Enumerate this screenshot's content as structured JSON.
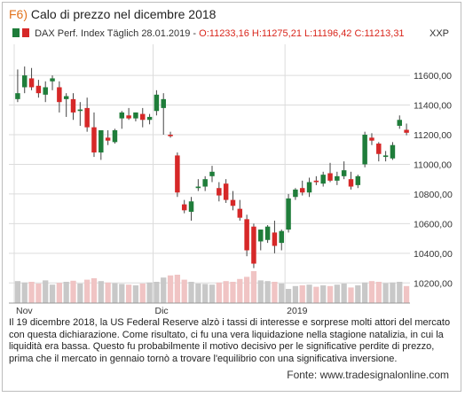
{
  "figure": {
    "number": "F6)",
    "title": "Calo di prezzo nel dicembre 2018"
  },
  "legend": {
    "instrument": "DAX Perf. Index Täglich",
    "date": "28.01.2019",
    "ohlc": "O:11233,16 H:11275,21 L:11196,42 C:11213,31",
    "currency": "XXP"
  },
  "caption": "Il 19 dicembre 2018, la US Federal Reserve alzò i tassi di interesse e sorprese molti attori del mercato con questa dichiarazione. Come risultato, ci fu una vera liquidazione nella stagione natalizia, in cui la liquidità era bassa. Questo fu probabilmente il motivo decisivo per le significative perdite di prezzo, prima che il mercato in gennaio tornò a trovare l'equilibrio con una significativa inversione.",
  "source": "Fonte: www.tradesignalonline.com",
  "colors": {
    "up": "#1f7d3a",
    "down": "#d62828",
    "volume": "#c8c8c8",
    "volume_down": "#f0c4c4",
    "grid": "#dcdcdc",
    "accent": "#e2731d"
  },
  "chart_data": {
    "type": "candlestick",
    "ylim": [
      10100,
      11750
    ],
    "y_ticks": [
      10200,
      10400,
      10600,
      10800,
      11000,
      11200,
      11400,
      11600
    ],
    "y_tick_labels": [
      "10200,00",
      "10400,00",
      "10600,00",
      "10800,00",
      "11000,00",
      "11200,00",
      "11400,00",
      "11600,00"
    ],
    "x_labels": [
      {
        "label": "Nov",
        "index": 0
      },
      {
        "label": "Dic",
        "index": 20
      },
      {
        "label": "2019",
        "index": 39
      }
    ],
    "grid": true,
    "candles": [
      {
        "o": 11440,
        "h": 11640,
        "l": 11420,
        "c": 11480
      },
      {
        "o": 11520,
        "h": 11660,
        "l": 11480,
        "c": 11600
      },
      {
        "o": 11580,
        "h": 11650,
        "l": 11500,
        "c": 11520
      },
      {
        "o": 11530,
        "h": 11570,
        "l": 11450,
        "c": 11480
      },
      {
        "o": 11470,
        "h": 11560,
        "l": 11420,
        "c": 11520
      },
      {
        "o": 11560,
        "h": 11600,
        "l": 11500,
        "c": 11580
      },
      {
        "o": 11520,
        "h": 11560,
        "l": 11350,
        "c": 11420
      },
      {
        "o": 11440,
        "h": 11480,
        "l": 11320,
        "c": 11460
      },
      {
        "o": 11440,
        "h": 11480,
        "l": 11300,
        "c": 11350
      },
      {
        "o": 11360,
        "h": 11420,
        "l": 11260,
        "c": 11370
      },
      {
        "o": 11380,
        "h": 11450,
        "l": 11220,
        "c": 11250
      },
      {
        "o": 11250,
        "h": 11350,
        "l": 11050,
        "c": 11080
      },
      {
        "o": 11080,
        "h": 11220,
        "l": 11030,
        "c": 11230
      },
      {
        "o": 11180,
        "h": 11230,
        "l": 11130,
        "c": 11160
      },
      {
        "o": 11150,
        "h": 11240,
        "l": 11140,
        "c": 11230
      },
      {
        "o": 11310,
        "h": 11360,
        "l": 11240,
        "c": 11350
      },
      {
        "o": 11330,
        "h": 11380,
        "l": 11300,
        "c": 11310
      },
      {
        "o": 11310,
        "h": 11350,
        "l": 11290,
        "c": 11350
      },
      {
        "o": 11340,
        "h": 11380,
        "l": 11250,
        "c": 11300
      },
      {
        "o": 11300,
        "h": 11340,
        "l": 11270,
        "c": 11320
      },
      {
        "o": 11360,
        "h": 11500,
        "l": 11330,
        "c": 11470
      },
      {
        "o": 11380,
        "h": 11480,
        "l": 11200,
        "c": 11440
      },
      {
        "o": 11200,
        "h": 11220,
        "l": 11180,
        "c": 11190
      },
      {
        "o": 11060,
        "h": 11080,
        "l": 10780,
        "c": 10810
      },
      {
        "o": 10730,
        "h": 10760,
        "l": 10670,
        "c": 10690
      },
      {
        "o": 10680,
        "h": 10780,
        "l": 10620,
        "c": 10750
      },
      {
        "o": 10840,
        "h": 10900,
        "l": 10820,
        "c": 10850
      },
      {
        "o": 10850,
        "h": 10920,
        "l": 10820,
        "c": 10900
      },
      {
        "o": 10920,
        "h": 10990,
        "l": 10880,
        "c": 10950
      },
      {
        "o": 10840,
        "h": 10880,
        "l": 10750,
        "c": 10790
      },
      {
        "o": 10870,
        "h": 10900,
        "l": 10740,
        "c": 10760
      },
      {
        "o": 10760,
        "h": 10820,
        "l": 10690,
        "c": 10720
      },
      {
        "o": 10700,
        "h": 10760,
        "l": 10620,
        "c": 10640
      },
      {
        "o": 10630,
        "h": 10660,
        "l": 10380,
        "c": 10420
      },
      {
        "o": 10580,
        "h": 10600,
        "l": 10300,
        "c": 10330
      },
      {
        "o": 10480,
        "h": 10560,
        "l": 10420,
        "c": 10560
      },
      {
        "o": 10490,
        "h": 10590,
        "l": 10470,
        "c": 10580
      },
      {
        "o": 10540,
        "h": 10620,
        "l": 10400,
        "c": 10450
      },
      {
        "o": 10470,
        "h": 10560,
        "l": 10420,
        "c": 10550
      },
      {
        "o": 10560,
        "h": 10800,
        "l": 10540,
        "c": 10770
      },
      {
        "o": 10780,
        "h": 10840,
        "l": 10760,
        "c": 10830
      },
      {
        "o": 10840,
        "h": 10890,
        "l": 10790,
        "c": 10810
      },
      {
        "o": 10810,
        "h": 10910,
        "l": 10780,
        "c": 10880
      },
      {
        "o": 10890,
        "h": 10920,
        "l": 10860,
        "c": 10880
      },
      {
        "o": 10870,
        "h": 10950,
        "l": 10850,
        "c": 10930
      },
      {
        "o": 10940,
        "h": 11010,
        "l": 10880,
        "c": 10890
      },
      {
        "o": 10890,
        "h": 10950,
        "l": 10860,
        "c": 10920
      },
      {
        "o": 10920,
        "h": 11020,
        "l": 10900,
        "c": 10960
      },
      {
        "o": 10900,
        "h": 10950,
        "l": 10830,
        "c": 10850
      },
      {
        "o": 10860,
        "h": 10930,
        "l": 10840,
        "c": 10920
      },
      {
        "o": 11000,
        "h": 11220,
        "l": 10980,
        "c": 11200
      },
      {
        "o": 11180,
        "h": 11210,
        "l": 11130,
        "c": 11160
      },
      {
        "o": 11140,
        "h": 11150,
        "l": 11020,
        "c": 11070
      },
      {
        "o": 11050,
        "h": 11090,
        "l": 11020,
        "c": 11060
      },
      {
        "o": 11040,
        "h": 11150,
        "l": 11030,
        "c": 11130
      },
      {
        "o": 11260,
        "h": 11330,
        "l": 11240,
        "c": 11300
      },
      {
        "o": 11233,
        "h": 11275,
        "l": 11196,
        "c": 11213
      }
    ],
    "volume": [
      62,
      58,
      60,
      55,
      64,
      52,
      57,
      60,
      63,
      55,
      66,
      70,
      62,
      58,
      56,
      54,
      52,
      50,
      55,
      58,
      60,
      72,
      78,
      80,
      66,
      60,
      55,
      54,
      52,
      58,
      62,
      60,
      68,
      74,
      90,
      64,
      62,
      60,
      55,
      40,
      48,
      50,
      52,
      46,
      50,
      48,
      52,
      55,
      44,
      50,
      58,
      62,
      60,
      56,
      58,
      60,
      48
    ],
    "volume_max": 100
  }
}
